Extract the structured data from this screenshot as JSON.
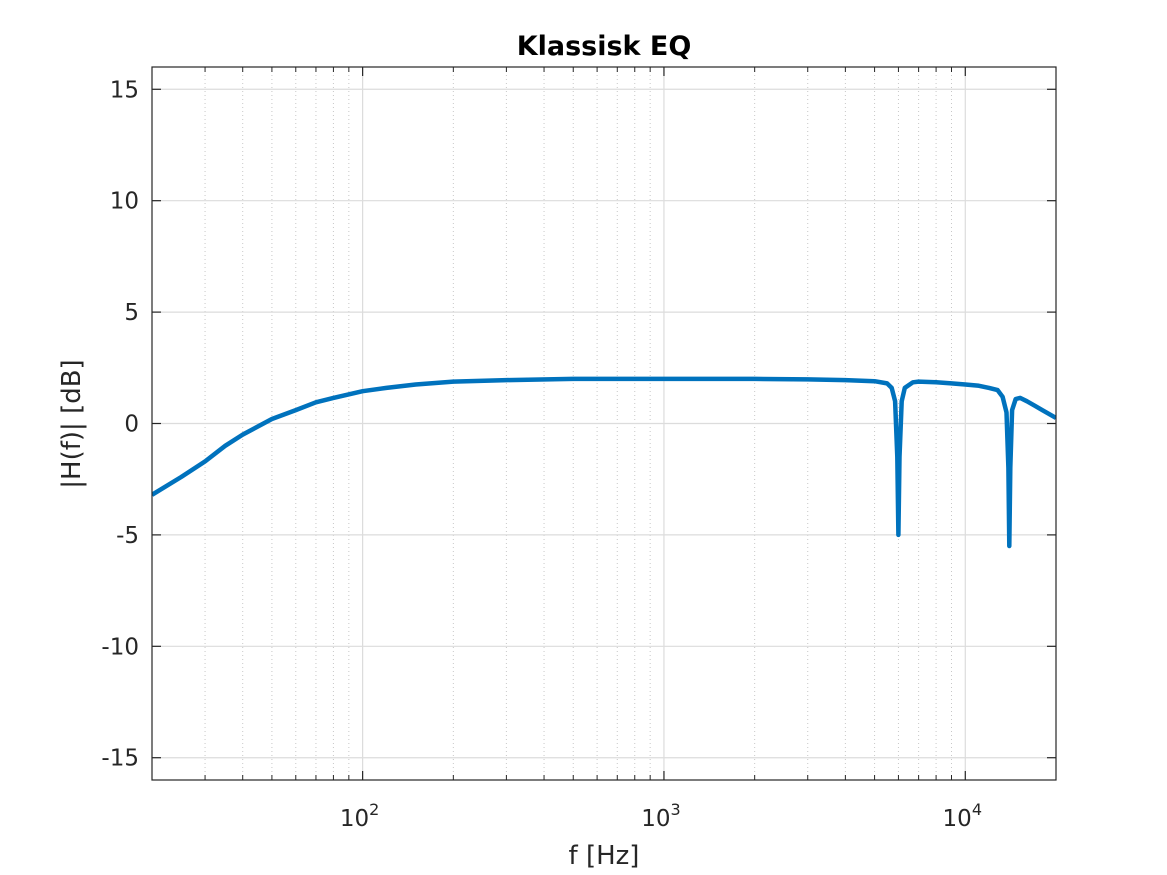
{
  "chart_data": {
    "type": "line",
    "title": "Klassisk EQ",
    "xlabel": "f [Hz]",
    "ylabel": "|H(f)| [dB]",
    "xscale": "log",
    "xlim": [
      20,
      20000
    ],
    "ylim": [
      -16,
      16
    ],
    "yticks": [
      -15,
      -10,
      -5,
      0,
      5,
      10,
      15
    ],
    "ytick_labels": [
      "-15",
      "-10",
      "-5",
      "0",
      "5",
      "10",
      "15"
    ],
    "xticks": [
      100,
      1000,
      10000
    ],
    "xtick_labels": [
      {
        "base": "10",
        "exp": "2"
      },
      {
        "base": "10",
        "exp": "3"
      },
      {
        "base": "10",
        "exp": "4"
      }
    ],
    "grid": true,
    "minor_grid": true,
    "line_color": "#0072BD",
    "series": [
      {
        "x": [
          20,
          25,
          30,
          35,
          40,
          50,
          60,
          70,
          80,
          100,
          120,
          150,
          200,
          300,
          500,
          700,
          1000,
          2000,
          3000,
          4000,
          5000,
          5500,
          5700,
          5850,
          5950,
          6000,
          6050,
          6150,
          6300,
          6700,
          7000,
          8000,
          9000,
          10000,
          11000,
          12000,
          12800,
          13300,
          13700,
          13900,
          14000,
          14100,
          14300,
          14700,
          15200,
          16000,
          17000,
          18000,
          20000
        ],
        "y": [
          -3.2,
          -2.4,
          -1.7,
          -1.0,
          -0.5,
          0.2,
          0.6,
          0.95,
          1.15,
          1.45,
          1.6,
          1.75,
          1.88,
          1.95,
          2.0,
          2.0,
          2.0,
          2.0,
          1.98,
          1.95,
          1.9,
          1.8,
          1.6,
          1.0,
          -1.5,
          -5.0,
          -1.5,
          1.0,
          1.6,
          1.85,
          1.88,
          1.85,
          1.8,
          1.75,
          1.7,
          1.6,
          1.5,
          1.2,
          0.5,
          -2.0,
          -5.5,
          -2.0,
          0.6,
          1.1,
          1.15,
          1.0,
          0.8,
          0.6,
          0.25
        ]
      }
    ]
  }
}
